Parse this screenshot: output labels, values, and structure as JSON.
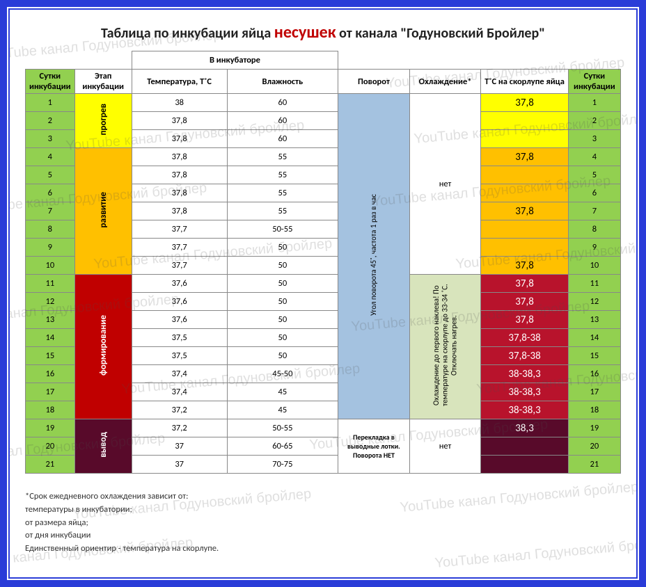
{
  "title": {
    "pre": "Таблица по инкубации яйца ",
    "highlight": "несушек",
    "post": " от канала \"Годуновский Бройлер\""
  },
  "watermark_text": "YouTube канал Годуновский бройлер",
  "colors": {
    "frame": "#2a3cd8",
    "green": "#92d050",
    "yellow": "#ffff00",
    "orange": "#ffc000",
    "red": "#c00000",
    "dark_red": "#b8132c",
    "maroon": "#580a2a",
    "blue_fill": "#a4c2e0",
    "olive": "#d8e4bc"
  },
  "headers": {
    "incubator_group": "В инкубаторе",
    "days": "Сутки инкубации",
    "stage": "Этап инкубации",
    "temp": "Температура, Т˚С",
    "humidity": "Влажность",
    "turn": "Поворот",
    "cooling": "Охлаждение*",
    "shell_temp": "Т˚С на скорлупе яйца"
  },
  "stages": {
    "s1": "прогрев",
    "s2": "развитие",
    "s3": "формирование",
    "s4": "вывод"
  },
  "turn_text": "Угол поворота 45˚, частота 1 раз в час",
  "turn_hatch": "Перекладка в выводные лотки. Поворота НЕТ",
  "cooling_none": "нет",
  "cooling_text": "Охлаждение до первого наклева! По температуре на скорлупе до 33-34 ˚С. Отключать нагрев.",
  "rows": [
    {
      "d": "1",
      "t": "38",
      "h": "60",
      "shell": "37,8",
      "sc": "yellow"
    },
    {
      "d": "2",
      "t": "37,8",
      "h": "60",
      "shell": "",
      "sc": "yellow"
    },
    {
      "d": "3",
      "t": "37,8",
      "h": "60",
      "shell": "",
      "sc": "yellow"
    },
    {
      "d": "4",
      "t": "37,8",
      "h": "55",
      "shell": "37,8",
      "sc": "orange"
    },
    {
      "d": "5",
      "t": "37,8",
      "h": "55",
      "shell": "",
      "sc": "orange"
    },
    {
      "d": "6",
      "t": "37,8",
      "h": "55",
      "shell": "",
      "sc": "orange"
    },
    {
      "d": "7",
      "t": "37,8",
      "h": "55",
      "shell": "37,8",
      "sc": "orange"
    },
    {
      "d": "8",
      "t": "37,7",
      "h": "50-55",
      "shell": "",
      "sc": "orange"
    },
    {
      "d": "9",
      "t": "37,7",
      "h": "50",
      "shell": "",
      "sc": "orange"
    },
    {
      "d": "10",
      "t": "37,7",
      "h": "50",
      "shell": "37,8",
      "sc": "orange"
    },
    {
      "d": "11",
      "t": "37,6",
      "h": "50",
      "shell": "37,8",
      "sc": "dred"
    },
    {
      "d": "12",
      "t": "37,6",
      "h": "50",
      "shell": "37,8",
      "sc": "dred"
    },
    {
      "d": "13",
      "t": "37,6",
      "h": "50",
      "shell": "37,8",
      "sc": "dred"
    },
    {
      "d": "14",
      "t": "37,5",
      "h": "50",
      "shell": "37,8-38",
      "sc": "dred"
    },
    {
      "d": "15",
      "t": "37,5",
      "h": "50",
      "shell": "37,8-38",
      "sc": "dred"
    },
    {
      "d": "16",
      "t": "37,4",
      "h": "45-50",
      "shell": "38-38,3",
      "sc": "dred"
    },
    {
      "d": "17",
      "t": "37,4",
      "h": "45",
      "shell": "38-38,3",
      "sc": "dred"
    },
    {
      "d": "18",
      "t": "37,2",
      "h": "45",
      "shell": "38-38,3",
      "sc": "dred"
    },
    {
      "d": "19",
      "t": "37,2",
      "h": "50-55",
      "shell": "38,3",
      "sc": "dark"
    },
    {
      "d": "20",
      "t": "37",
      "h": "60-65",
      "shell": "",
      "sc": "dark"
    },
    {
      "d": "21",
      "t": "37",
      "h": "70-75",
      "shell": "",
      "sc": "dark"
    }
  ],
  "footnote": {
    "l1": "*Срок ежедневного охлаждения зависит от:",
    "l2": "температуры в инкубатории;",
    "l3": "от размера яйца;",
    "l4": "от дня инкубации",
    "l5": "Единственный ориентир - температура на скорлупе."
  }
}
